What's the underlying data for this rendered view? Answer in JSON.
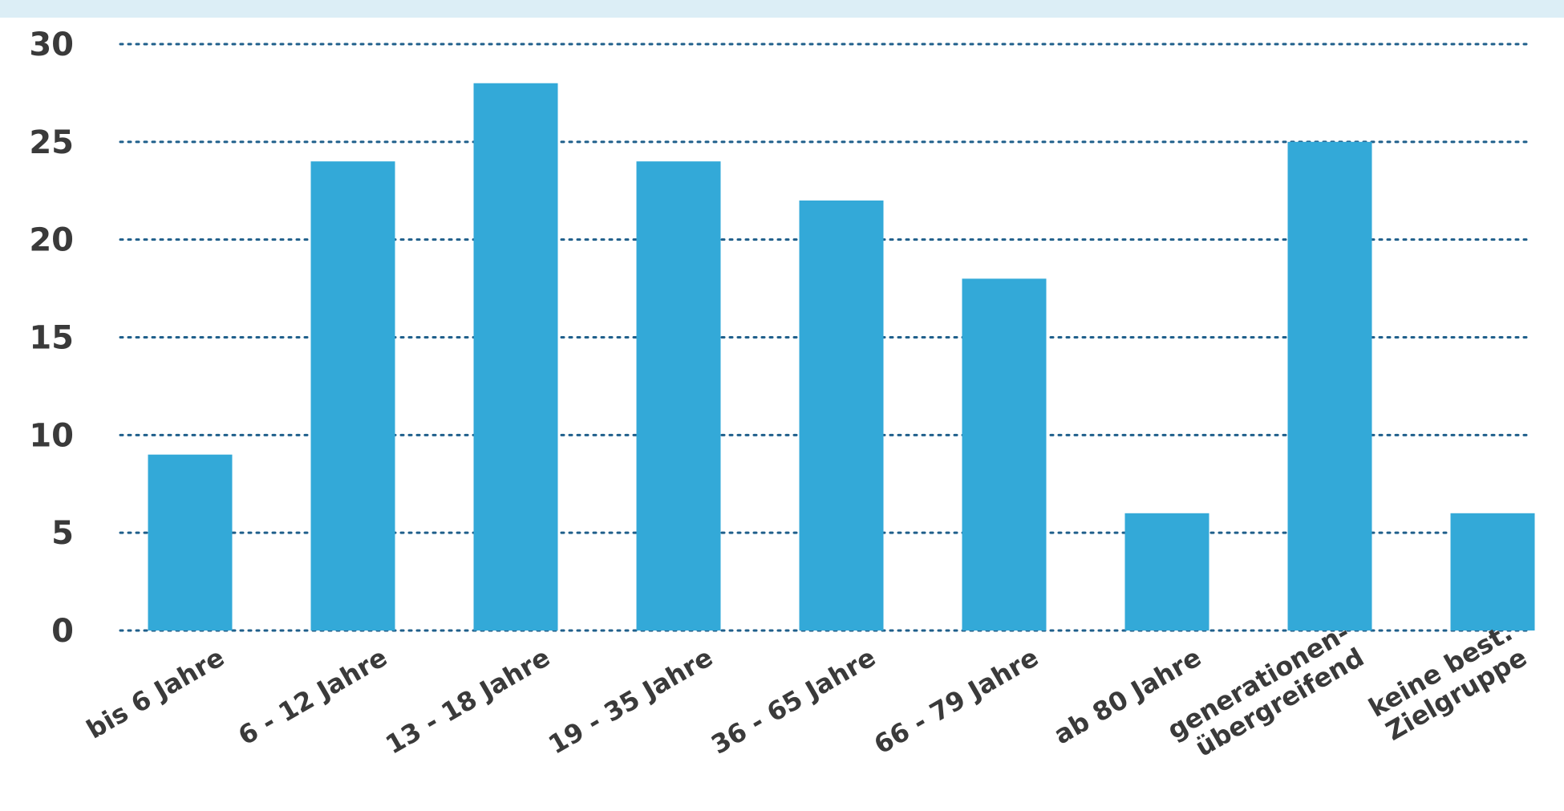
{
  "chart_data": {
    "type": "bar",
    "categories": [
      "bis 6 Jahre",
      "6 - 12 Jahre",
      "13 - 18 Jahre",
      "19 - 35 Jahre",
      "36 - 65 Jahre",
      "66 - 79 Jahre",
      "ab 80 Jahre",
      "generationen-\nübergreifend",
      "keine best.\nZielgruppe"
    ],
    "values": [
      9,
      24,
      28,
      24,
      22,
      18,
      6,
      25,
      6
    ],
    "ylim": [
      0,
      30
    ],
    "yticks": [
      0,
      5,
      10,
      15,
      20,
      25,
      30
    ],
    "grid": true,
    "grid_style": "dotted",
    "legend": "none",
    "colors": {
      "bar": "#33a9d8",
      "grid": "#1f5f8b",
      "text": "#3a3a3a",
      "top_band": "#dceef6"
    }
  }
}
